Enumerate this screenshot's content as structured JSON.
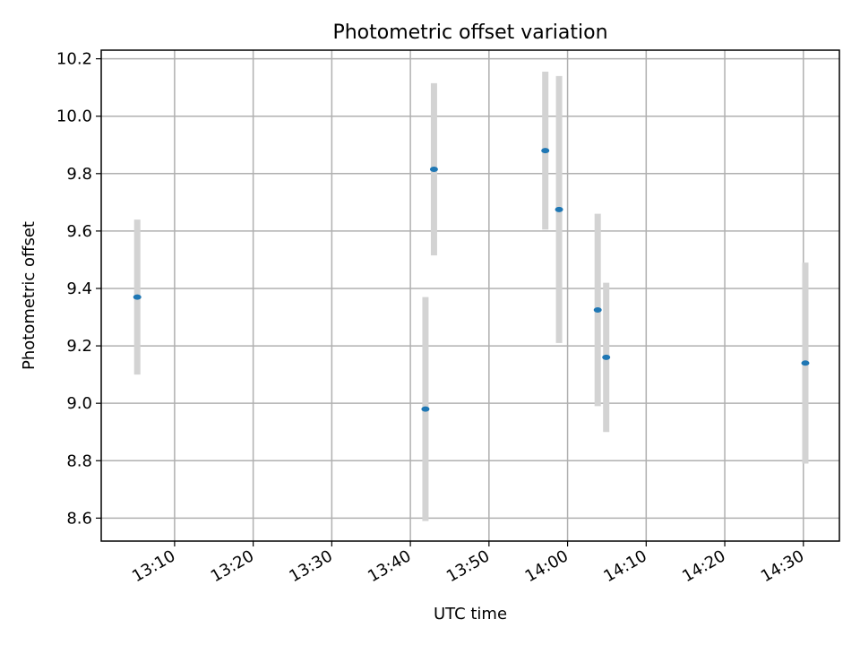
{
  "chart_data": {
    "type": "scatter",
    "title": "Photometric offset variation",
    "xlabel": "UTC time",
    "ylabel": "Photometric offset",
    "x_ticks": [
      "13:10",
      "13:20",
      "13:30",
      "13:40",
      "13:50",
      "14:00",
      "14:10",
      "14:20",
      "14:30"
    ],
    "y_ticks": [
      "8.6",
      "8.8",
      "9.0",
      "9.2",
      "9.4",
      "9.6",
      "9.8",
      "10.0",
      "10.2"
    ],
    "xlim": [
      "13:00:40",
      "14:34:35"
    ],
    "ylim": [
      8.52,
      10.23
    ],
    "grid": true,
    "points": [
      {
        "x": "13:05:15",
        "y": 9.37,
        "err": 0.27
      },
      {
        "x": "13:41:55",
        "y": 8.98,
        "err": 0.39
      },
      {
        "x": "13:43:00",
        "y": 9.815,
        "err": 0.3
      },
      {
        "x": "13:57:10",
        "y": 9.88,
        "err": 0.275
      },
      {
        "x": "13:58:55",
        "y": 9.675,
        "err": 0.465
      },
      {
        "x": "14:03:50",
        "y": 9.325,
        "err": 0.335
      },
      {
        "x": "14:04:55",
        "y": 9.16,
        "err": 0.26
      },
      {
        "x": "14:30:15",
        "y": 9.14,
        "err": 0.35
      }
    ],
    "colors": {
      "marker": "#1f77b4",
      "errorbar": "#d3d3d3",
      "grid": "#b0b0b0"
    }
  }
}
